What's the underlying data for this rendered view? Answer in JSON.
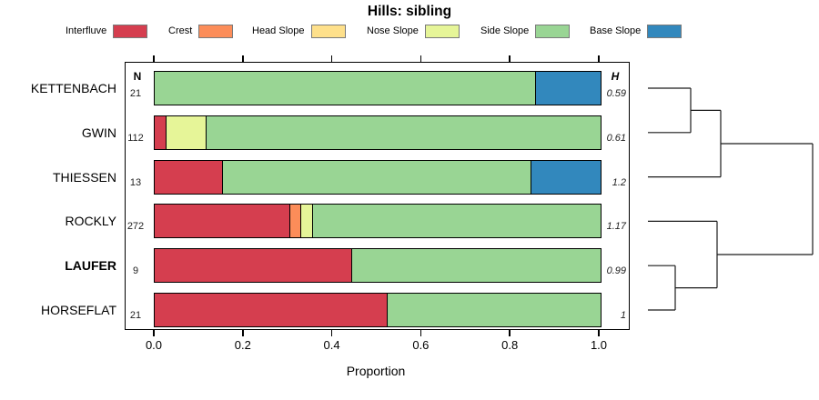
{
  "title": "Hills: sibling",
  "legend": [
    {
      "label": "Interfluve",
      "color": "#D53E4F"
    },
    {
      "label": "Crest",
      "color": "#FC8D59"
    },
    {
      "label": "Head Slope",
      "color": "#FEE08B"
    },
    {
      "label": "Nose Slope",
      "color": "#E6F598"
    },
    {
      "label": "Side Slope",
      "color": "#99D594"
    },
    {
      "label": "Base Slope",
      "color": "#3288BD"
    }
  ],
  "chart_data": {
    "type": "bar",
    "orientation": "horizontal",
    "stacked": true,
    "title": "Hills: sibling",
    "xlabel": "Proportion",
    "xlim": [
      0,
      1
    ],
    "xticks": [
      "0.0",
      "0.2",
      "0.4",
      "0.6",
      "0.8",
      "1.0"
    ],
    "grid": false,
    "legend_position": "top",
    "categories": [
      "Interfluve",
      "Crest",
      "Head Slope",
      "Nose Slope",
      "Side Slope",
      "Base Slope"
    ],
    "columns": {
      "n_header": "N",
      "h_header": "H"
    },
    "rows": [
      {
        "label": "KETTENBACH",
        "bold": false,
        "n": "21",
        "h": "0.59",
        "segments": [
          {
            "category": "Side Slope",
            "value": 0.857
          },
          {
            "category": "Base Slope",
            "value": 0.143
          }
        ]
      },
      {
        "label": "GWIN",
        "bold": false,
        "n": "112",
        "h": "0.61",
        "segments": [
          {
            "category": "Interfluve",
            "value": 0.027
          },
          {
            "category": "Nose Slope",
            "value": 0.089
          },
          {
            "category": "Side Slope",
            "value": 0.884
          }
        ]
      },
      {
        "label": "THIESSEN",
        "bold": false,
        "n": "13",
        "h": "1.2",
        "segments": [
          {
            "category": "Interfluve",
            "value": 0.154
          },
          {
            "category": "Side Slope",
            "value": 0.692
          },
          {
            "category": "Base Slope",
            "value": 0.154
          }
        ]
      },
      {
        "label": "ROCKLY",
        "bold": false,
        "n": "272",
        "h": "1.17",
        "segments": [
          {
            "category": "Interfluve",
            "value": 0.305
          },
          {
            "category": "Crest",
            "value": 0.024
          },
          {
            "category": "Nose Slope",
            "value": 0.026
          },
          {
            "category": "Side Slope",
            "value": 0.645
          }
        ]
      },
      {
        "label": "LAUFER",
        "bold": true,
        "n": "9",
        "h": "0.99",
        "segments": [
          {
            "category": "Interfluve",
            "value": 0.444
          },
          {
            "category": "Side Slope",
            "value": 0.556
          }
        ]
      },
      {
        "label": "HORSEFLAT",
        "bold": false,
        "n": "21",
        "h": "1",
        "segments": [
          {
            "category": "Interfluve",
            "value": 0.524
          },
          {
            "category": "Side Slope",
            "value": 0.476
          }
        ]
      }
    ],
    "dendrogram": {
      "leaves": [
        "KETTENBACH",
        "GWIN",
        "THIESSEN",
        "ROCKLY",
        "LAUFER",
        "HORSEFLAT"
      ],
      "tree": {
        "depth": 181,
        "children": [
          {
            "depth": 80,
            "children": [
              {
                "depth": 47,
                "children": [
                  "KETTENBACH",
                  "GWIN"
                ]
              },
              "THIESSEN"
            ]
          },
          {
            "depth": 76,
            "children": [
              "ROCKLY",
              {
                "depth": 30,
                "children": [
                  "LAUFER",
                  "HORSEFLAT"
                ]
              }
            ]
          }
        ]
      }
    }
  }
}
